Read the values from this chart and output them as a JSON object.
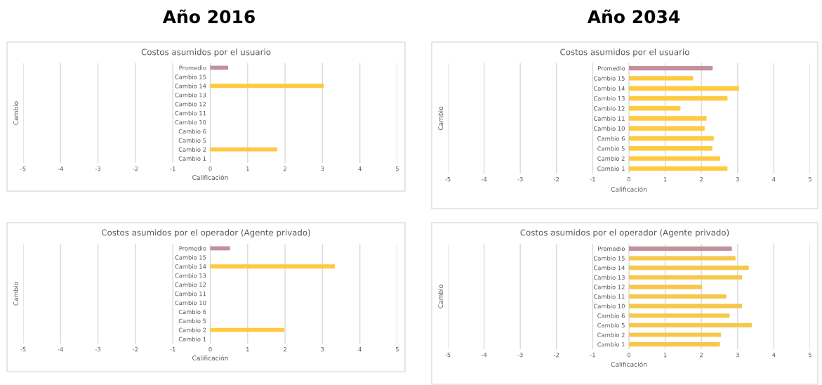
{
  "chart_data": [
    {
      "type": "bar",
      "orientation": "horizontal",
      "title": "Costos asumidos por el usuario",
      "annotations": [
        "Año 2016"
      ],
      "xlabel": "Calificación",
      "ylabel": "Cambio",
      "categories": [
        "Promedio",
        "Cambio 15",
        "Cambio 14",
        "Cambio 13",
        "Cambio 12",
        "Cambio 11",
        "Cambio 10",
        "Cambio 6",
        "Cambio 5",
        "Cambio 2",
        "Cambio 1"
      ],
      "values": [
        0.48,
        null,
        3.03,
        null,
        null,
        null,
        null,
        null,
        null,
        1.79,
        null
      ],
      "colors": [
        "#c3909c",
        "#ffc940",
        "#ffc940",
        "#ffc940",
        "#ffc940",
        "#ffc940",
        "#ffc940",
        "#ffc940",
        "#ffc940",
        "#ffc940",
        "#ffc940"
      ],
      "xlim": [
        -5,
        5
      ],
      "xticks": [
        -5,
        -4,
        -3,
        -2,
        -1,
        0,
        1,
        2,
        3,
        4,
        5
      ],
      "grid": "x"
    },
    {
      "type": "bar",
      "orientation": "horizontal",
      "title": "Costos asumidos por el usuario",
      "annotations": [
        "Año 2034"
      ],
      "xlabel": "Calificación",
      "ylabel": "Cambio",
      "categories": [
        "Promedio",
        "Cambio 15",
        "Cambio 14",
        "Cambio 13",
        "Cambio 12",
        "Cambio 11",
        "Cambio 10",
        "Cambio 6",
        "Cambio 5",
        "Cambio 2",
        "Cambio 1"
      ],
      "values": [
        2.31,
        1.77,
        3.04,
        2.72,
        1.42,
        2.14,
        2.09,
        2.34,
        2.3,
        2.52,
        2.72
      ],
      "colors": [
        "#c3909c",
        "#ffc940",
        "#ffc940",
        "#ffc940",
        "#ffc940",
        "#ffc940",
        "#ffc940",
        "#ffc940",
        "#ffc940",
        "#ffc940",
        "#ffc940"
      ],
      "xlim": [
        -5,
        5
      ],
      "xticks": [
        -5,
        -4,
        -3,
        -2,
        -1,
        0,
        1,
        2,
        3,
        4,
        5
      ],
      "grid": "x"
    },
    {
      "type": "bar",
      "orientation": "horizontal",
      "title": "Costos asumidos por el operador (Agente privado)",
      "xlabel": "Calificación",
      "ylabel": "Cambio",
      "categories": [
        "Promedio",
        "Cambio 15",
        "Cambio 14",
        "Cambio 13",
        "Cambio 12",
        "Cambio 11",
        "Cambio 10",
        "Cambio 6",
        "Cambio 5",
        "Cambio 2",
        "Cambio 1"
      ],
      "values": [
        0.53,
        null,
        3.33,
        null,
        null,
        null,
        null,
        null,
        null,
        1.98,
        null
      ],
      "colors": [
        "#c3909c",
        "#ffc940",
        "#ffc940",
        "#ffc940",
        "#ffc940",
        "#ffc940",
        "#ffc940",
        "#ffc940",
        "#ffc940",
        "#ffc940",
        "#ffc940"
      ],
      "xlim": [
        -5,
        5
      ],
      "xticks": [
        -5,
        -4,
        -3,
        -2,
        -1,
        0,
        1,
        2,
        3,
        4,
        5
      ],
      "grid": "x"
    },
    {
      "type": "bar",
      "orientation": "horizontal",
      "title": "Costos asumidos por el operador (Agente privado)",
      "xlabel": "Calificación",
      "ylabel": "Cambio",
      "categories": [
        "Promedio",
        "Cambio 15",
        "Cambio 14",
        "Cambio 13",
        "Cambio 12",
        "Cambio 11",
        "Cambio 10",
        "Cambio 6",
        "Cambio 5",
        "Cambio 2",
        "Cambio 1"
      ],
      "values": [
        2.84,
        2.94,
        3.31,
        3.12,
        2.02,
        2.69,
        3.12,
        2.78,
        3.39,
        2.54,
        2.51
      ],
      "colors": [
        "#c3909c",
        "#f5c84c",
        "#f5c84c",
        "#f5c84c",
        "#f5c84c",
        "#f5c84c",
        "#f5c84c",
        "#f5c84c",
        "#f5c84c",
        "#f5c84c",
        "#f5c84c"
      ],
      "xlim": [
        -5,
        5
      ],
      "xticks": [
        -5,
        -4,
        -3,
        -2,
        -1,
        0,
        1,
        2,
        3,
        4,
        5
      ],
      "grid": "x"
    }
  ]
}
